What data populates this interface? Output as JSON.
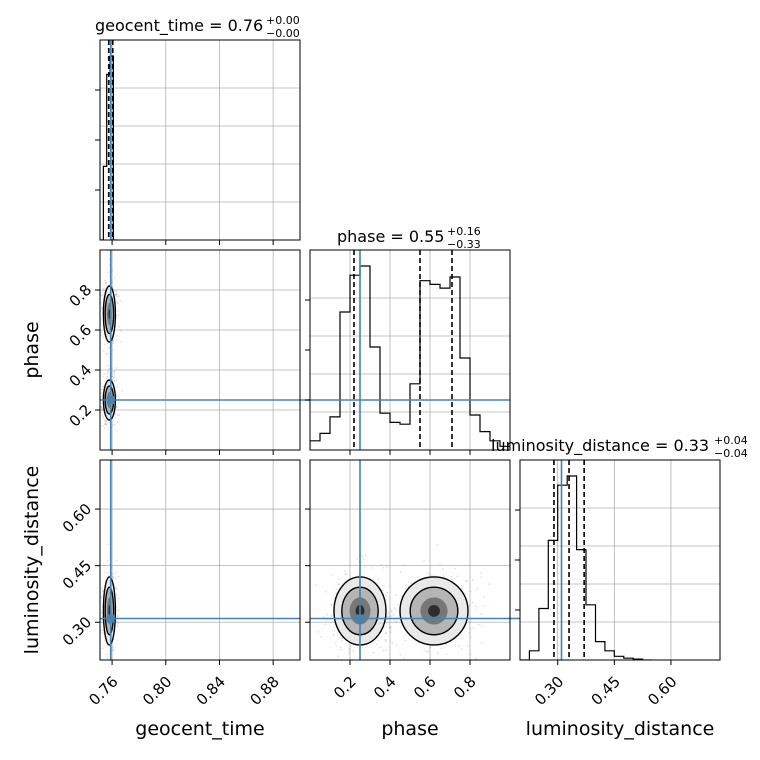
{
  "chart_data": {
    "type": "corner",
    "parameters": [
      "geocent_time",
      "phase",
      "luminosity_distance"
    ],
    "titles": {
      "geocent_time": {
        "label": "geocent_time = ",
        "median": "0.76",
        "plus": "+0.00",
        "minus": "−0.00"
      },
      "phase": {
        "label": "phase = ",
        "median": "0.55",
        "plus": "+0.16",
        "minus": "−0.33"
      },
      "luminosity_distance": {
        "label": "luminosity_distance = ",
        "median": "0.33",
        "plus": "+0.04",
        "minus": "−0.04"
      }
    },
    "axis_labels": {
      "x": [
        "geocent_time",
        "phase",
        "luminosity_distance"
      ],
      "y": [
        "phase",
        "luminosity_distance"
      ]
    },
    "ranges": {
      "geocent_time": [
        0.751,
        0.9
      ],
      "phase": [
        0.0,
        1.0
      ],
      "luminosity_distance": [
        0.2,
        0.73
      ]
    },
    "ticks": {
      "geocent_time": {
        "values": [
          0.76,
          0.8,
          0.84,
          0.88
        ],
        "labels": [
          "0.76",
          "0.80",
          "0.84",
          "0.88"
        ]
      },
      "phase_x": {
        "values": [
          0.2,
          0.4,
          0.6,
          0.8
        ],
        "labels": [
          "0.2",
          "0.4",
          "0.6",
          "0.8"
        ]
      },
      "phase_y": {
        "values": [
          0.2,
          0.4,
          0.6,
          0.8
        ],
        "labels": [
          "0.2",
          "0.4",
          "0.6",
          "0.8"
        ]
      },
      "luminosity_distance": {
        "values": [
          0.3,
          0.45,
          0.6
        ],
        "labels": [
          "0.30",
          "0.45",
          "0.60"
        ]
      }
    },
    "injection": {
      "geocent_time": 0.759,
      "phase": 0.25,
      "luminosity_distance": 0.31
    },
    "quantiles": {
      "geocent_time": [
        0.7575,
        0.759,
        0.7605
      ],
      "phase": [
        0.22,
        0.55,
        0.71
      ],
      "luminosity_distance": [
        0.29,
        0.33,
        0.37
      ]
    },
    "histograms": {
      "geocent_time": {
        "edges": [
          0.751,
          0.7535,
          0.756,
          0.7585,
          0.761,
          0.7635
        ],
        "counts": [
          0.0,
          0.4,
          0.9,
          1.0,
          0.0
        ]
      },
      "phase": {
        "edges": [
          0.0,
          0.05,
          0.1,
          0.15,
          0.2,
          0.25,
          0.3,
          0.35,
          0.4,
          0.45,
          0.5,
          0.55,
          0.6,
          0.65,
          0.7,
          0.75,
          0.8,
          0.85,
          0.9,
          0.95,
          1.0
        ],
        "counts": [
          0.05,
          0.09,
          0.18,
          0.75,
          0.95,
          1.0,
          0.56,
          0.2,
          0.15,
          0.14,
          0.36,
          0.92,
          0.9,
          0.88,
          0.94,
          0.5,
          0.19,
          0.1,
          0.05,
          0.02
        ]
      },
      "luminosity_distance": {
        "edges": [
          0.2,
          0.225,
          0.25,
          0.275,
          0.3,
          0.325,
          0.35,
          0.375,
          0.4,
          0.425,
          0.45,
          0.475,
          0.5,
          0.525,
          0.55
        ],
        "counts": [
          0.0,
          0.05,
          0.28,
          0.65,
          0.95,
          1.0,
          0.6,
          0.3,
          0.1,
          0.05,
          0.02,
          0.01,
          0.005,
          0.0
        ]
      }
    },
    "density_blobs": [
      {
        "panel": "geocent_time-phase",
        "center": [
          0.758,
          0.25
        ],
        "sigma": [
          0.0014,
          0.05
        ],
        "weight": 1.0
      },
      {
        "panel": "geocent_time-phase",
        "center": [
          0.758,
          0.68
        ],
        "sigma": [
          0.0014,
          0.07
        ],
        "weight": 1.0
      },
      {
        "panel": "geocent_time-luminosity_distance",
        "center": [
          0.758,
          0.33
        ],
        "sigma": [
          0.0014,
          0.045
        ],
        "weight": 1.0
      },
      {
        "panel": "phase-luminosity_distance",
        "center": [
          0.25,
          0.33
        ],
        "sigma": [
          0.065,
          0.045
        ],
        "weight": 1.0
      },
      {
        "panel": "phase-luminosity_distance",
        "center": [
          0.62,
          0.33
        ],
        "sigma": [
          0.085,
          0.045
        ],
        "weight": 1.0
      }
    ],
    "colors": {
      "truth": "#4682b4",
      "histogram": "#000000",
      "grid": "#b0b0b0",
      "density": "#000000"
    },
    "grid": true
  }
}
